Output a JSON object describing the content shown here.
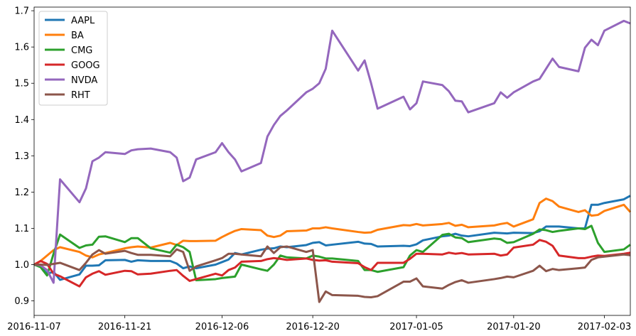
{
  "chart_data": {
    "type": "line",
    "title": "",
    "xlabel": "",
    "ylabel": "",
    "ylim": [
      0.86,
      1.71
    ],
    "xlim": [
      "2016-11-07",
      "2017-02-07"
    ],
    "grid": false,
    "legend_position": "top-left",
    "x_ticks": [
      "2016-11-07",
      "2016-11-21",
      "2016-12-06",
      "2016-12-20",
      "2017-01-05",
      "2017-01-20",
      "2017-02-03"
    ],
    "y_ticks": [
      "0.9",
      "1.0",
      "1.1",
      "1.2",
      "1.3",
      "1.4",
      "1.5",
      "1.6",
      "1.7"
    ],
    "x": [
      "2016-11-07",
      "2016-11-08",
      "2016-11-09",
      "2016-11-10",
      "2016-11-11",
      "2016-11-14",
      "2016-11-15",
      "2016-11-16",
      "2016-11-17",
      "2016-11-18",
      "2016-11-21",
      "2016-11-22",
      "2016-11-23",
      "2016-11-25",
      "2016-11-28",
      "2016-11-29",
      "2016-11-30",
      "2016-12-01",
      "2016-12-02",
      "2016-12-05",
      "2016-12-06",
      "2016-12-07",
      "2016-12-08",
      "2016-12-09",
      "2016-12-12",
      "2016-12-13",
      "2016-12-14",
      "2016-12-15",
      "2016-12-16",
      "2016-12-19",
      "2016-12-20",
      "2016-12-21",
      "2016-12-22",
      "2016-12-23",
      "2016-12-27",
      "2016-12-28",
      "2016-12-29",
      "2016-12-30",
      "2017-01-03",
      "2017-01-04",
      "2017-01-05",
      "2017-01-06",
      "2017-01-09",
      "2017-01-10",
      "2017-01-11",
      "2017-01-12",
      "2017-01-13",
      "2017-01-17",
      "2017-01-18",
      "2017-01-19",
      "2017-01-20",
      "2017-01-23",
      "2017-01-24",
      "2017-01-25",
      "2017-01-26",
      "2017-01-27",
      "2017-01-30",
      "2017-01-31",
      "2017-02-01",
      "2017-02-02",
      "2017-02-03",
      "2017-02-06",
      "2017-02-07"
    ],
    "series": [
      {
        "name": "AAPL",
        "color": "#1f77b4",
        "values": [
          1.0,
          0.995,
          0.975,
          0.98,
          0.958,
          0.973,
          0.997,
          0.997,
          0.998,
          1.012,
          1.013,
          1.008,
          1.012,
          1.01,
          1.01,
          1.003,
          0.99,
          0.995,
          0.99,
          1.0,
          1.007,
          1.014,
          1.032,
          1.028,
          1.041,
          1.044,
          1.045,
          1.05,
          1.048,
          1.054,
          1.06,
          1.062,
          1.053,
          1.055,
          1.063,
          1.058,
          1.057,
          1.05,
          1.052,
          1.051,
          1.056,
          1.067,
          1.078,
          1.08,
          1.085,
          1.08,
          1.078,
          1.088,
          1.087,
          1.086,
          1.088,
          1.087,
          1.092,
          1.105,
          1.105,
          1.105,
          1.1,
          1.1,
          1.165,
          1.165,
          1.17,
          1.18,
          1.19
        ]
      },
      {
        "name": "BA",
        "color": "#ff7f0e",
        "values": [
          1.0,
          1.01,
          1.025,
          1.04,
          1.048,
          1.035,
          1.025,
          1.02,
          1.028,
          1.032,
          1.045,
          1.048,
          1.05,
          1.047,
          1.06,
          1.054,
          1.066,
          1.065,
          1.065,
          1.066,
          1.076,
          1.085,
          1.093,
          1.098,
          1.095,
          1.08,
          1.076,
          1.08,
          1.092,
          1.094,
          1.1,
          1.1,
          1.103,
          1.1,
          1.09,
          1.088,
          1.089,
          1.096,
          1.109,
          1.108,
          1.112,
          1.108,
          1.112,
          1.115,
          1.107,
          1.11,
          1.103,
          1.108,
          1.112,
          1.115,
          1.105,
          1.125,
          1.17,
          1.182,
          1.175,
          1.16,
          1.145,
          1.15,
          1.135,
          1.137,
          1.148,
          1.165,
          1.145
        ]
      },
      {
        "name": "CMG",
        "color": "#2ca02c",
        "values": [
          1.0,
          0.993,
          0.97,
          1.03,
          1.083,
          1.046,
          1.053,
          1.055,
          1.077,
          1.078,
          1.062,
          1.073,
          1.073,
          1.045,
          1.033,
          1.055,
          1.048,
          1.035,
          0.957,
          0.96,
          0.963,
          0.965,
          0.967,
          1.0,
          0.987,
          0.983,
          1.0,
          1.025,
          1.02,
          1.017,
          1.025,
          1.022,
          1.017,
          1.017,
          1.01,
          0.985,
          0.985,
          0.98,
          0.993,
          1.025,
          1.04,
          1.035,
          1.082,
          1.085,
          1.075,
          1.073,
          1.062,
          1.072,
          1.07,
          1.06,
          1.062,
          1.085,
          1.097,
          1.095,
          1.09,
          1.093,
          1.1,
          1.098,
          1.107,
          1.06,
          1.035,
          1.042,
          1.055
        ]
      },
      {
        "name": "GOOG",
        "color": "#d62728",
        "values": [
          1.0,
          1.01,
          1.002,
          0.975,
          0.968,
          0.94,
          0.965,
          0.975,
          0.982,
          0.972,
          0.983,
          0.982,
          0.973,
          0.975,
          0.983,
          0.985,
          0.969,
          0.955,
          0.96,
          0.975,
          0.97,
          0.985,
          0.992,
          1.008,
          1.01,
          1.015,
          1.018,
          1.016,
          1.013,
          1.017,
          1.013,
          1.011,
          1.012,
          1.008,
          1.004,
          0.993,
          0.985,
          1.005,
          1.005,
          1.016,
          1.03,
          1.03,
          1.028,
          1.033,
          1.03,
          1.032,
          1.028,
          1.03,
          1.025,
          1.028,
          1.047,
          1.055,
          1.068,
          1.063,
          1.052,
          1.025,
          1.018,
          1.018,
          1.022,
          1.025,
          1.024,
          1.03,
          1.033
        ]
      },
      {
        "name": "NVDA",
        "color": "#9467bd",
        "values": [
          1.0,
          0.998,
          0.985,
          0.95,
          1.235,
          1.172,
          1.21,
          1.285,
          1.295,
          1.31,
          1.305,
          1.315,
          1.318,
          1.32,
          1.31,
          1.295,
          1.23,
          1.24,
          1.29,
          1.31,
          1.335,
          1.31,
          1.29,
          1.257,
          1.28,
          1.353,
          1.385,
          1.41,
          1.425,
          1.475,
          1.485,
          1.5,
          1.54,
          1.645,
          1.535,
          1.563,
          1.5,
          1.43,
          1.463,
          1.428,
          1.445,
          1.505,
          1.495,
          1.478,
          1.452,
          1.45,
          1.42,
          1.445,
          1.475,
          1.46,
          1.475,
          1.505,
          1.512,
          1.54,
          1.568,
          1.545,
          1.533,
          1.598,
          1.62,
          1.605,
          1.645,
          1.672,
          1.665
        ]
      },
      {
        "name": "RHT",
        "color": "#8c564b",
        "values": [
          1.0,
          1.0,
          0.999,
          1.002,
          1.005,
          0.985,
          1.005,
          1.028,
          1.04,
          1.03,
          1.038,
          1.032,
          1.027,
          1.027,
          1.023,
          1.042,
          1.035,
          0.983,
          0.995,
          1.012,
          1.018,
          1.03,
          1.03,
          1.028,
          1.023,
          1.05,
          1.032,
          1.048,
          1.05,
          1.035,
          1.04,
          0.897,
          0.926,
          0.916,
          0.914,
          0.911,
          0.91,
          0.913,
          0.953,
          0.953,
          0.962,
          0.94,
          0.934,
          0.944,
          0.952,
          0.957,
          0.95,
          0.96,
          0.963,
          0.967,
          0.965,
          0.983,
          0.997,
          0.982,
          0.988,
          0.985,
          0.99,
          0.992,
          1.013,
          1.02,
          1.022,
          1.028,
          1.026
        ]
      }
    ]
  }
}
